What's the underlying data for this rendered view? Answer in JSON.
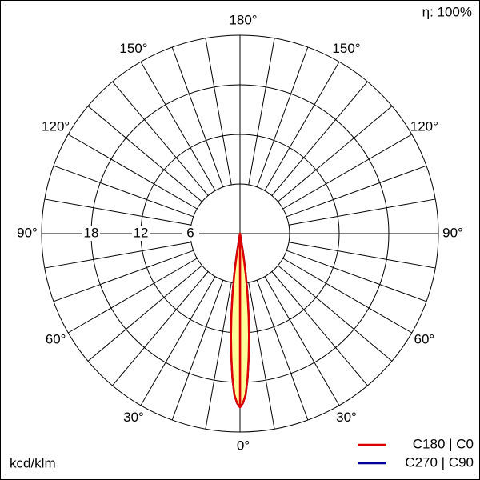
{
  "chart_data": {
    "type": "polar",
    "efficiency": "η: 100%",
    "unit": "kcd/klm",
    "rlim": [
      0,
      24
    ],
    "rticks": [
      6,
      12,
      18
    ],
    "theta_grid": [
      0,
      10,
      20,
      30,
      40,
      50,
      60,
      70,
      80,
      90,
      100,
      110,
      120,
      130,
      140,
      150,
      160,
      170,
      180
    ],
    "thetaticks": [
      {
        "value": 0,
        "label": "0°"
      },
      {
        "value": 30,
        "label": "30°"
      },
      {
        "value": 60,
        "label": "60°"
      },
      {
        "value": 90,
        "label": "90°"
      },
      {
        "value": 120,
        "label": "120°"
      },
      {
        "value": 150,
        "label": "150°"
      },
      {
        "value": 180,
        "label": "180°"
      }
    ],
    "angles": [
      0,
      1,
      2,
      3,
      4,
      5,
      6,
      7,
      8,
      9,
      10
    ],
    "fill": "#ffff99",
    "series": [
      {
        "name": "C270 | C90",
        "color": "#000099",
        "values": [
          21,
          20.5,
          19.5,
          17.5,
          15,
          12.5,
          10,
          7.5,
          5,
          2.5,
          0
        ]
      },
      {
        "name": "C180 | C0",
        "color": "#dd0000",
        "values": [
          21,
          20.5,
          19.5,
          17.5,
          15,
          12.5,
          10,
          7.5,
          5,
          2.5,
          0
        ]
      }
    ]
  }
}
